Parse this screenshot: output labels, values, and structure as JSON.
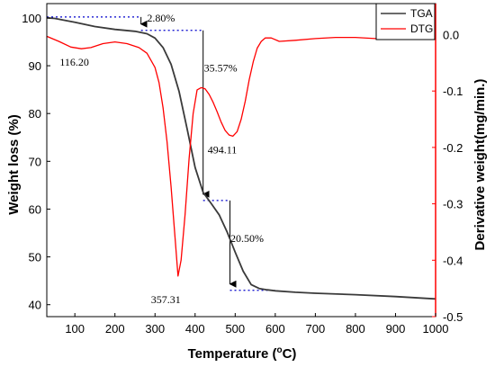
{
  "chart_data": {
    "type": "line",
    "xlabel": "Temperature (",
    "xlabel_unit_sup": "o",
    "xlabel_unit_rest": "C)",
    "ylabel_left": "Weight loss (%)",
    "ylabel_right": "Derivative weight(mg/min.)",
    "xlim": [
      30,
      1000
    ],
    "ylim_left": [
      37.5,
      103
    ],
    "ylim_right": [
      -0.5,
      0.055
    ],
    "x_ticks": [
      100,
      200,
      300,
      400,
      500,
      600,
      700,
      800,
      900,
      1000
    ],
    "y_left_ticks": [
      40,
      50,
      60,
      70,
      80,
      90,
      100
    ],
    "y_right_ticks": [
      0.0,
      -0.1,
      -0.2,
      -0.3,
      -0.4,
      -0.5
    ],
    "y_right_tick_labels": [
      "0.0",
      "-0.1",
      "-0.2",
      "-0.3",
      "-0.4",
      "-0.5"
    ],
    "legend_position": "top-right",
    "colors": {
      "tga": "#3a3a3a",
      "dtg": "#ff0000",
      "annotation": "#0000cc",
      "right_axis": "#ff0000"
    },
    "series": [
      {
        "name": "TGA",
        "axis": "left",
        "x": [
          30,
          50,
          100,
          150,
          200,
          250,
          280,
          300,
          320,
          340,
          360,
          380,
          400,
          420,
          440,
          460,
          480,
          500,
          520,
          540,
          560,
          580,
          600,
          650,
          700,
          800,
          900,
          1000
        ],
        "y": [
          100.0,
          99.9,
          99.1,
          98.2,
          97.6,
          97.2,
          96.7,
          95.8,
          93.8,
          90.3,
          84.6,
          76.8,
          68.7,
          63.5,
          61.2,
          58.8,
          55.2,
          51.0,
          47.0,
          44.2,
          43.4,
          43.1,
          42.9,
          42.6,
          42.4,
          42.1,
          41.7,
          41.2
        ]
      },
      {
        "name": "DTG",
        "axis": "right",
        "x": [
          30,
          60,
          90,
          116.2,
          140,
          170,
          200,
          230,
          260,
          280,
          300,
          310,
          320,
          330,
          340,
          350,
          357.31,
          365,
          375,
          385,
          395,
          405,
          415,
          425,
          435,
          445,
          455,
          465,
          475,
          485,
          494.11,
          505,
          515,
          525,
          535,
          545,
          555,
          565,
          575,
          590,
          610,
          650,
          700,
          750,
          800,
          850,
          900,
          950,
          1000
        ],
        "y": [
          -0.003,
          -0.012,
          -0.022,
          -0.025,
          -0.023,
          -0.016,
          -0.013,
          -0.016,
          -0.023,
          -0.033,
          -0.058,
          -0.085,
          -0.13,
          -0.19,
          -0.27,
          -0.36,
          -0.428,
          -0.4,
          -0.32,
          -0.22,
          -0.14,
          -0.098,
          -0.094,
          -0.096,
          -0.106,
          -0.12,
          -0.137,
          -0.155,
          -0.17,
          -0.178,
          -0.18,
          -0.172,
          -0.15,
          -0.118,
          -0.08,
          -0.048,
          -0.024,
          -0.012,
          -0.006,
          -0.006,
          -0.012,
          -0.01,
          -0.007,
          -0.005,
          -0.005,
          -0.007,
          -0.006,
          -0.005,
          -0.004
        ]
      }
    ],
    "annotations": [
      {
        "text": "116.20",
        "x": 116.2,
        "y": -0.025,
        "axis": "right",
        "dx": -24,
        "dy": 19
      },
      {
        "text": "357.31",
        "x": 357.31,
        "y": -0.428,
        "axis": "right",
        "dx": -30,
        "dy": 30
      },
      {
        "text": "494.11",
        "x": 494.11,
        "y": -0.18,
        "axis": "right",
        "dx": -28,
        "dy": 19
      },
      {
        "text": "2.80%",
        "x": 280,
        "y": 99.2,
        "axis": "left",
        "dx": 0,
        "dy": 0
      },
      {
        "text": "35.57%",
        "x": 422,
        "y": 88.8,
        "axis": "left",
        "dx": 0,
        "dy": 0
      },
      {
        "text": "20.50%",
        "x": 488,
        "y": 53.1,
        "axis": "left",
        "dx": 0,
        "dy": 0
      }
    ],
    "step_guides": [
      {
        "x_start": 30,
        "x_end": 265,
        "y_top": 100.2,
        "y_bottom": 97.4
      },
      {
        "x_start": 265,
        "x_end": 420,
        "y_top": 97.4,
        "y_bottom": 61.8
      },
      {
        "x_start": 420,
        "x_end": 487,
        "y_top": 61.8,
        "y_bottom": 43.0
      },
      {
        "x_start": 487,
        "x_end": 600,
        "y_top": 43.0,
        "y_bottom": 43.0,
        "horizontal_only": true
      }
    ]
  }
}
